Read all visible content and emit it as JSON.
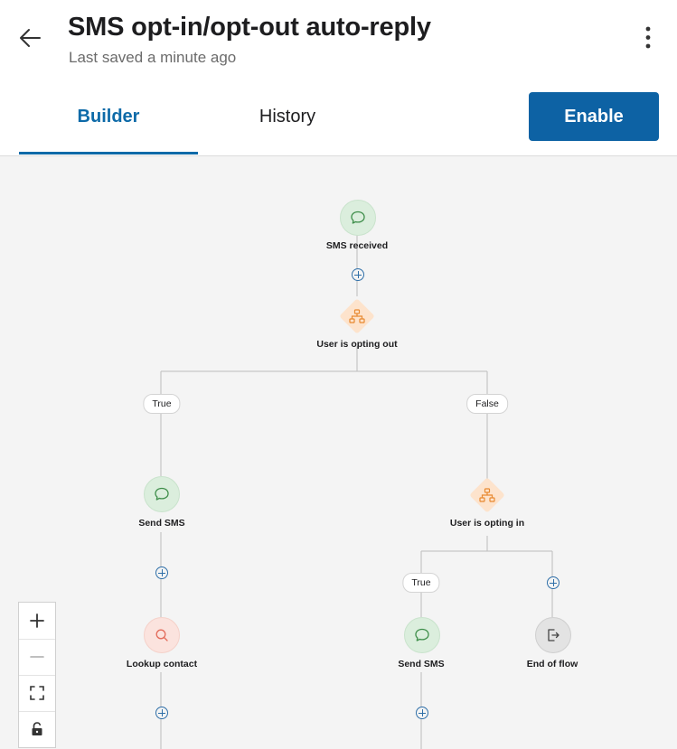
{
  "header": {
    "title": "SMS opt-in/opt-out auto-reply",
    "subtitle": "Last saved a minute ago",
    "back_icon": "arrow-left-icon",
    "more_icon": "more-vertical-icon"
  },
  "tabs": [
    {
      "label": "Builder",
      "active": true
    },
    {
      "label": "History",
      "active": false
    }
  ],
  "actions": {
    "enable_label": "Enable"
  },
  "flow": {
    "trigger": {
      "label": "SMS received",
      "icon": "chat-bubble-icon"
    },
    "condition_1": {
      "label": "User is opting out",
      "icon": "branch-icon"
    },
    "branch_true_label": "True",
    "branch_false_label": "False",
    "send_sms_1": {
      "label": "Send SMS",
      "icon": "chat-bubble-icon"
    },
    "lookup_contact": {
      "label": "Lookup contact",
      "icon": "search-icon"
    },
    "condition_2": {
      "label": "User is opting in",
      "icon": "branch-icon"
    },
    "branch2_true_label": "True",
    "send_sms_2": {
      "label": "Send SMS",
      "icon": "chat-bubble-icon"
    },
    "end_of_flow": {
      "label": "End of flow",
      "icon": "exit-icon"
    }
  },
  "zoom_controls": [
    "zoom-in-icon",
    "zoom-out-icon",
    "fit-screen-icon",
    "lock-icon"
  ],
  "colors": {
    "accent": "#0d62a4",
    "trigger_green": "#dbeedd",
    "condition_orange": "#fde3cc",
    "lookup_red": "#fbe3de"
  }
}
